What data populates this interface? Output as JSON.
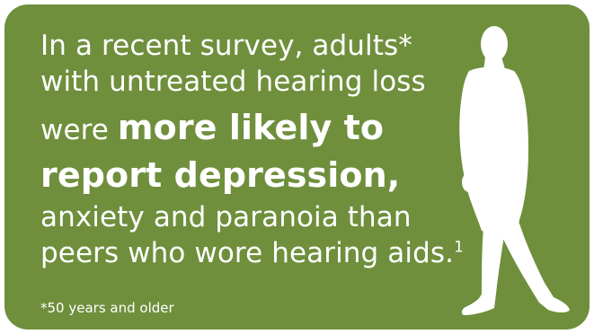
{
  "headline": {
    "line1": "In a recent survey, adults*",
    "line2": "with untreated hearing loss",
    "line3_lead": "were ",
    "line3_bold": "more likely to",
    "line4_bold": "report depression,",
    "line5": "anxiety and paranoia than",
    "line6": "peers who wore hearing aids.",
    "line6_sup": "1"
  },
  "footnote": "*50 years and older",
  "colors": {
    "background": "#6f8f3c",
    "text": "#ffffff"
  },
  "figure": "walking-man-silhouette"
}
